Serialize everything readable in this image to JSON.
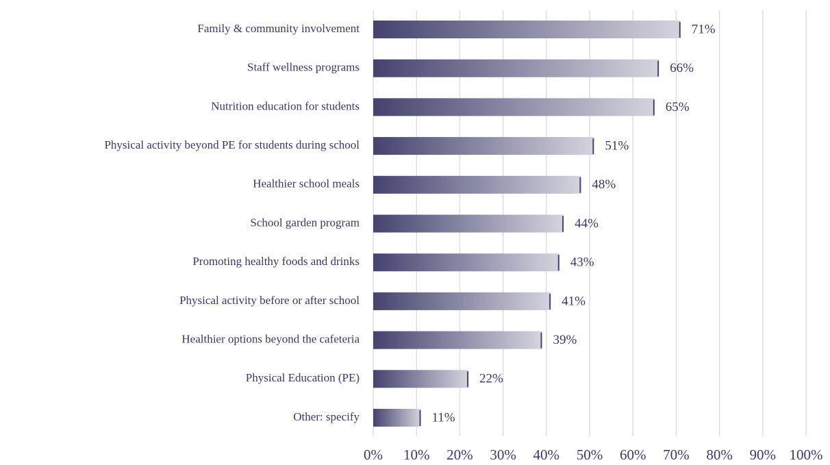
{
  "chart_data": {
    "type": "bar",
    "orientation": "horizontal",
    "categories": [
      "Family & community involvement",
      "Staff wellness programs",
      "Nutrition education for students",
      "Physical activity beyond PE for students during school",
      "Healthier school meals",
      "School garden program",
      "Promoting healthy foods and drinks",
      "Physical activity before or after school",
      "Healthier options beyond the cafeteria",
      "Physical Education (PE)",
      "Other: specify"
    ],
    "values": [
      71,
      66,
      65,
      51,
      48,
      44,
      43,
      41,
      39,
      22,
      11
    ],
    "value_labels": [
      "71%",
      "66%",
      "65%",
      "51%",
      "48%",
      "44%",
      "43%",
      "41%",
      "39%",
      "22%",
      "11%"
    ],
    "color": "#45436f",
    "xlim": [
      0,
      100
    ],
    "xticks": [
      {
        "value": 0,
        "label": "0%"
      },
      {
        "value": 10,
        "label": "10%"
      },
      {
        "value": 20,
        "label": "20%"
      },
      {
        "value": 30,
        "label": "30%"
      },
      {
        "value": 40,
        "label": "40%"
      },
      {
        "value": 50,
        "label": "50%"
      },
      {
        "value": 60,
        "label": "60%"
      },
      {
        "value": 70,
        "label": "70%"
      },
      {
        "value": 80,
        "label": "80%"
      },
      {
        "value": 90,
        "label": "90%"
      },
      {
        "value": 100,
        "label": "100%"
      }
    ],
    "grid": true
  }
}
